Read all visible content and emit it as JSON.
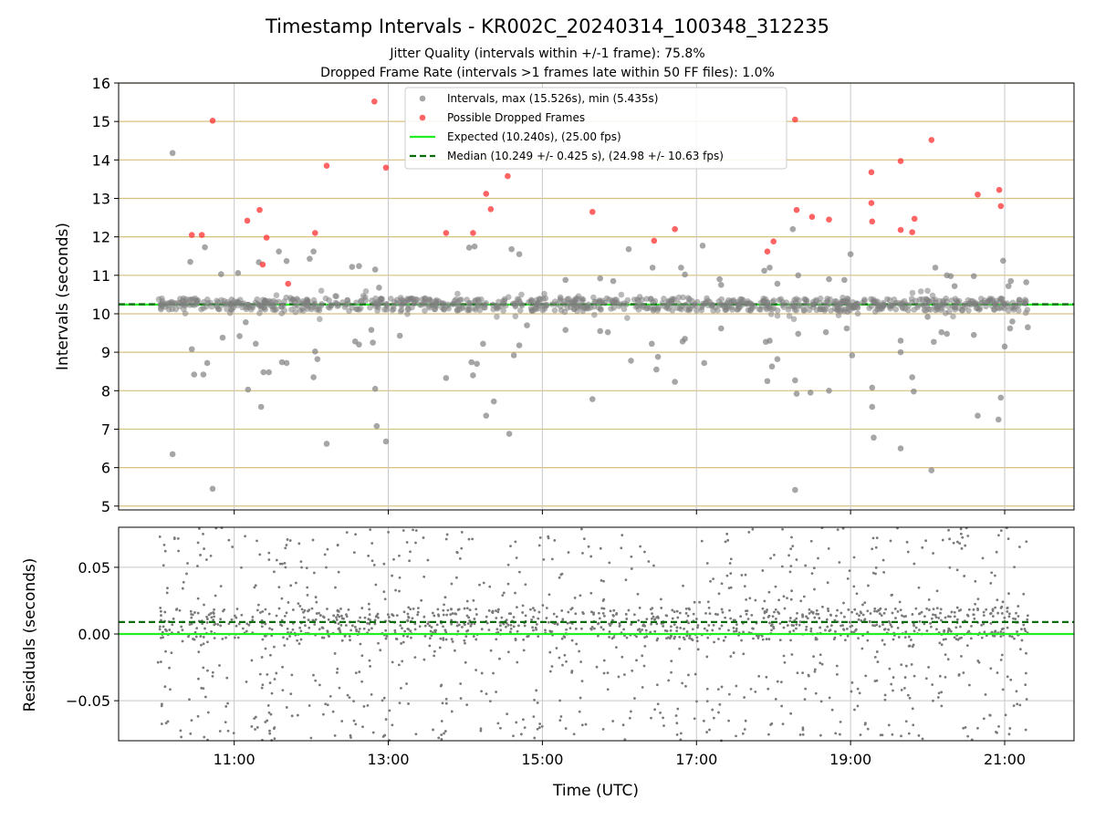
{
  "chart_data": [
    {
      "type": "scatter",
      "title": "Timestamp Intervals - KR002C_20240314_100348_312235",
      "subtitle_lines": [
        "Jitter Quality (intervals within +/-1 frame): 75.8%",
        "Dropped Frame Rate (intervals >1 frames late within 50 FF files): 1.0%"
      ],
      "xlabel": "",
      "ylabel": "Intervals (seconds)",
      "xlim_hours": [
        9.5,
        21.9
      ],
      "ylim": [
        4.9,
        16.0
      ],
      "yticks": [
        5,
        6,
        7,
        8,
        9,
        10,
        11,
        12,
        13,
        14,
        15,
        16
      ],
      "xticks_hours": [
        11,
        13,
        15,
        17,
        19,
        21
      ],
      "grid": "horizontal gold lines at each y tick, vertical grey lines at each x tick",
      "legend_position": "top-center",
      "colors": {
        "intervals": "#808080",
        "dropped": "#ff3030",
        "expected": "#22ee22",
        "median": "#0a6b0a",
        "hgrid": "#d8c080",
        "vgrid": "#c8c8c8"
      },
      "legend": [
        "Intervals, max (15.526s), min (5.435s)",
        "Possible Dropped Frames",
        "Expected (10.240s), (25.00 fps)",
        "Median (10.249 +/- 0.425 s), (24.98 +/- 10.63 fps)"
      ],
      "expected": 10.24,
      "median": 10.249,
      "series": [
        {
          "name": "Intervals, max (15.526s), min (5.435s)",
          "points": [
            [
              10.2,
              14.18
            ],
            [
              10.2,
              6.35
            ],
            [
              10.43,
              11.35
            ],
            [
              10.45,
              9.08
            ],
            [
              10.48,
              8.42
            ],
            [
              10.6,
              8.42
            ],
            [
              10.62,
              11.73
            ],
            [
              10.65,
              8.72
            ],
            [
              10.72,
              5.45
            ],
            [
              10.83,
              11.03
            ],
            [
              10.85,
              9.38
            ],
            [
              11.05,
              11.06
            ],
            [
              11.07,
              9.42
            ],
            [
              11.15,
              9.78
            ],
            [
              11.18,
              8.03
            ],
            [
              11.28,
              9.22
            ],
            [
              11.32,
              11.34
            ],
            [
              11.35,
              7.58
            ],
            [
              11.38,
              8.48
            ],
            [
              11.45,
              8.48
            ],
            [
              11.58,
              11.62
            ],
            [
              11.62,
              8.74
            ],
            [
              11.68,
              8.72
            ],
            [
              11.68,
              11.37
            ],
            [
              11.98,
              11.43
            ],
            [
              12.03,
              11.62
            ],
            [
              12.03,
              8.35
            ],
            [
              12.05,
              9.02
            ],
            [
              12.08,
              8.82
            ],
            [
              12.2,
              6.62
            ],
            [
              12.53,
              11.22
            ],
            [
              12.57,
              9.28
            ],
            [
              12.62,
              9.2
            ],
            [
              12.62,
              11.24
            ],
            [
              12.78,
              9.58
            ],
            [
              12.8,
              9.25
            ],
            [
              12.83,
              11.15
            ],
            [
              12.83,
              8.05
            ],
            [
              12.85,
              7.08
            ],
            [
              12.88,
              10.68
            ],
            [
              12.97,
              6.68
            ],
            [
              13.15,
              9.43
            ],
            [
              13.75,
              8.33
            ],
            [
              14.05,
              11.72
            ],
            [
              14.08,
              8.74
            ],
            [
              14.1,
              8.4
            ],
            [
              14.12,
              11.75
            ],
            [
              14.15,
              8.7
            ],
            [
              14.23,
              9.22
            ],
            [
              14.27,
              7.35
            ],
            [
              14.37,
              7.72
            ],
            [
              14.57,
              6.88
            ],
            [
              14.6,
              11.68
            ],
            [
              14.63,
              8.92
            ],
            [
              14.7,
              11.55
            ],
            [
              14.7,
              9.18
            ],
            [
              14.8,
              9.7
            ],
            [
              15.3,
              10.88
            ],
            [
              15.3,
              9.58
            ],
            [
              15.65,
              7.78
            ],
            [
              15.75,
              9.55
            ],
            [
              15.75,
              10.92
            ],
            [
              15.85,
              9.52
            ],
            [
              15.92,
              10.85
            ],
            [
              16.12,
              11.68
            ],
            [
              16.15,
              8.78
            ],
            [
              16.42,
              9.22
            ],
            [
              16.43,
              11.2
            ],
            [
              16.48,
              8.55
            ],
            [
              16.5,
              8.88
            ],
            [
              16.72,
              8.23
            ],
            [
              16.8,
              11.2
            ],
            [
              16.82,
              9.28
            ],
            [
              16.85,
              9.35
            ],
            [
              16.85,
              11.02
            ],
            [
              17.08,
              11.77
            ],
            [
              17.1,
              8.72
            ],
            [
              17.3,
              10.9
            ],
            [
              17.32,
              9.62
            ],
            [
              17.32,
              10.75
            ],
            [
              17.88,
              11.12
            ],
            [
              17.9,
              9.27
            ],
            [
              17.92,
              8.25
            ],
            [
              17.95,
              11.2
            ],
            [
              17.95,
              9.3
            ],
            [
              17.98,
              8.63
            ],
            [
              18.05,
              8.82
            ],
            [
              18.05,
              10.78
            ],
            [
              18.25,
              12.2
            ],
            [
              18.28,
              8.27
            ],
            [
              18.28,
              5.42
            ],
            [
              18.3,
              7.92
            ],
            [
              18.32,
              11.0
            ],
            [
              18.32,
              9.48
            ],
            [
              18.48,
              7.95
            ],
            [
              18.68,
              9.52
            ],
            [
              18.72,
              8.0
            ],
            [
              18.72,
              10.9
            ],
            [
              18.92,
              10.88
            ],
            [
              18.95,
              9.62
            ],
            [
              19.0,
              11.55
            ],
            [
              19.02,
              8.92
            ],
            [
              19.28,
              8.08
            ],
            [
              19.28,
              7.58
            ],
            [
              19.3,
              6.78
            ],
            [
              19.65,
              9.3
            ],
            [
              19.65,
              9.0
            ],
            [
              19.65,
              6.5
            ],
            [
              19.8,
              8.35
            ],
            [
              19.82,
              7.98
            ],
            [
              20.0,
              9.92
            ],
            [
              20.05,
              5.93
            ],
            [
              20.08,
              9.27
            ],
            [
              20.1,
              11.2
            ],
            [
              20.18,
              9.52
            ],
            [
              20.25,
              9.48
            ],
            [
              20.25,
              11.0
            ],
            [
              20.3,
              10.98
            ],
            [
              20.35,
              10.72
            ],
            [
              20.6,
              9.45
            ],
            [
              20.6,
              10.98
            ],
            [
              20.65,
              7.35
            ],
            [
              20.92,
              7.25
            ],
            [
              20.95,
              7.82
            ],
            [
              20.98,
              11.38
            ],
            [
              21.0,
              9.15
            ],
            [
              21.05,
              10.72
            ],
            [
              21.07,
              9.62
            ],
            [
              21.08,
              10.85
            ],
            [
              21.1,
              9.8
            ],
            [
              21.28,
              10.82
            ],
            [
              21.3,
              9.65
            ]
          ]
        },
        {
          "name": "Possible Dropped Frames",
          "points": [
            [
              10.45,
              12.05
            ],
            [
              10.58,
              12.05
            ],
            [
              10.72,
              15.02
            ],
            [
              11.17,
              12.42
            ],
            [
              11.33,
              12.7
            ],
            [
              11.37,
              11.28
            ],
            [
              11.42,
              11.98
            ],
            [
              11.7,
              10.78
            ],
            [
              12.05,
              12.1
            ],
            [
              12.2,
              13.85
            ],
            [
              12.82,
              15.52
            ],
            [
              12.97,
              13.8
            ],
            [
              13.75,
              12.1
            ],
            [
              14.1,
              12.1
            ],
            [
              14.27,
              13.12
            ],
            [
              14.33,
              12.72
            ],
            [
              14.55,
              13.58
            ],
            [
              15.65,
              12.65
            ],
            [
              16.45,
              11.9
            ],
            [
              16.72,
              12.2
            ],
            [
              17.92,
              11.62
            ],
            [
              18.0,
              11.88
            ],
            [
              18.28,
              15.05
            ],
            [
              18.3,
              12.7
            ],
            [
              18.5,
              12.52
            ],
            [
              18.72,
              12.45
            ],
            [
              19.27,
              13.68
            ],
            [
              19.27,
              12.88
            ],
            [
              19.28,
              12.4
            ],
            [
              19.65,
              13.97
            ],
            [
              19.65,
              12.18
            ],
            [
              19.8,
              12.12
            ],
            [
              19.83,
              12.47
            ],
            [
              20.05,
              14.52
            ],
            [
              20.65,
              13.1
            ],
            [
              20.93,
              13.22
            ],
            [
              20.95,
              12.8
            ]
          ]
        }
      ]
    },
    {
      "type": "scatter",
      "title": "",
      "xlabel": "Time (UTC)",
      "ylabel": "Residuals (seconds)",
      "xlim_hours": [
        9.5,
        21.9
      ],
      "ylim": [
        -0.08,
        0.08
      ],
      "yticks": [
        -0.05,
        0.0,
        0.05
      ],
      "ytick_labels": [
        "−0.05",
        "0.00",
        "0.05"
      ],
      "xticks_hours": [
        11,
        13,
        15,
        17,
        19,
        21
      ],
      "xtick_labels": [
        "11:00",
        "13:00",
        "15:00",
        "17:00",
        "19:00",
        "21:00"
      ],
      "grid": "grey grid lines at each tick",
      "expected_residual": 0.0,
      "median_residual": 0.009,
      "residual_points": {
        "count": 1700,
        "x_range_hours": [
          10.0,
          21.3
        ],
        "core_band": [
          -0.005,
          0.02
        ],
        "scatter_range": [
          -0.08,
          0.08
        ],
        "color": "#7a7a7a"
      }
    }
  ]
}
